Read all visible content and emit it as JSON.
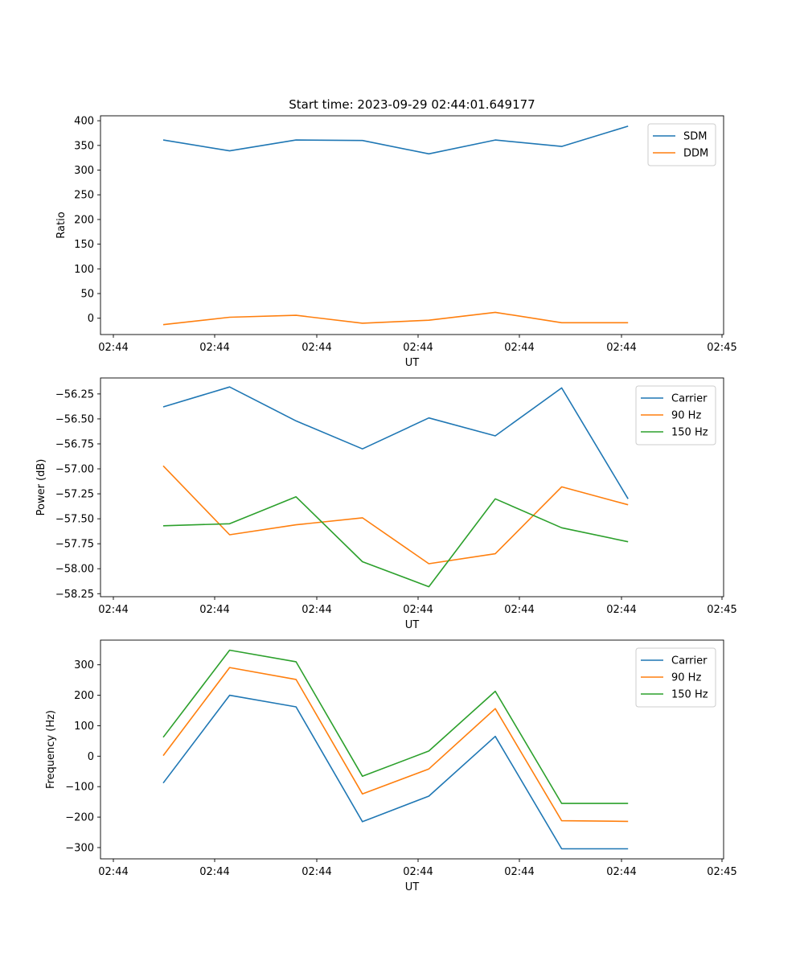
{
  "title": "Start time: 2023-09-29 02:44:01.649177",
  "chart_data": [
    {
      "type": "line",
      "xlabel": "UT",
      "ylabel": "Ratio",
      "x_tick_labels": [
        "02:44",
        "02:44",
        "02:44",
        "02:44",
        "02:44",
        "02:44",
        "02:45"
      ],
      "y_ticks": [
        0,
        50,
        100,
        150,
        200,
        250,
        300,
        350,
        400
      ],
      "ylim": [
        -33,
        410
      ],
      "legend": "top-right",
      "series": [
        {
          "name": "SDM",
          "color": "#1f77b4",
          "values": [
            361,
            339,
            361,
            360,
            333,
            361,
            348,
            389
          ]
        },
        {
          "name": "DDM",
          "color": "#ff7f0e",
          "values": [
            -13,
            2,
            6,
            -10,
            -4,
            12,
            -9,
            -9
          ]
        }
      ]
    },
    {
      "type": "line",
      "xlabel": "UT",
      "ylabel": "Power (dB)",
      "x_tick_labels": [
        "02:44",
        "02:44",
        "02:44",
        "02:44",
        "02:44",
        "02:44",
        "02:45"
      ],
      "y_ticks": [
        -58.25,
        -58.0,
        -57.75,
        -57.5,
        -57.25,
        -57.0,
        -56.75,
        -56.5,
        -56.25
      ],
      "y_tick_labels": [
        "−58.25",
        "−58.00",
        "−57.75",
        "−57.50",
        "−57.25",
        "−57.00",
        "−56.75",
        "−56.50",
        "−56.25"
      ],
      "ylim": [
        -58.28,
        -56.09
      ],
      "legend": "top-right",
      "series": [
        {
          "name": "Carrier",
          "color": "#1f77b4",
          "values": [
            -56.38,
            -56.18,
            -56.52,
            -56.8,
            -56.49,
            -56.67,
            -56.19,
            -57.3
          ]
        },
        {
          "name": "90 Hz",
          "color": "#ff7f0e",
          "values": [
            -56.97,
            -57.66,
            -57.56,
            -57.49,
            -57.95,
            -57.85,
            -57.18,
            -57.36
          ]
        },
        {
          "name": "150 Hz",
          "color": "#2ca02c",
          "values": [
            -57.57,
            -57.55,
            -57.28,
            -57.93,
            -58.18,
            -57.3,
            -57.59,
            -57.73
          ]
        }
      ]
    },
    {
      "type": "line",
      "xlabel": "UT",
      "ylabel": "Frequency (Hz)",
      "x_tick_labels": [
        "02:44",
        "02:44",
        "02:44",
        "02:44",
        "02:44",
        "02:44",
        "02:45"
      ],
      "y_ticks": [
        -300,
        -200,
        -100,
        0,
        100,
        200,
        300
      ],
      "y_tick_labels": [
        "−300",
        "−200",
        "−100",
        "0",
        "100",
        "200",
        "300"
      ],
      "ylim": [
        -337,
        381
      ],
      "legend": "top-right",
      "series": [
        {
          "name": "Carrier",
          "color": "#1f77b4",
          "values": [
            -88,
            200,
            162,
            -215,
            -131,
            65,
            -304,
            -304
          ]
        },
        {
          "name": "90 Hz",
          "color": "#ff7f0e",
          "values": [
            2,
            291,
            252,
            -124,
            -42,
            156,
            -212,
            -214
          ]
        },
        {
          "name": "150 Hz",
          "color": "#2ca02c",
          "values": [
            62,
            348,
            310,
            -66,
            17,
            213,
            -155,
            -155
          ]
        }
      ]
    }
  ]
}
